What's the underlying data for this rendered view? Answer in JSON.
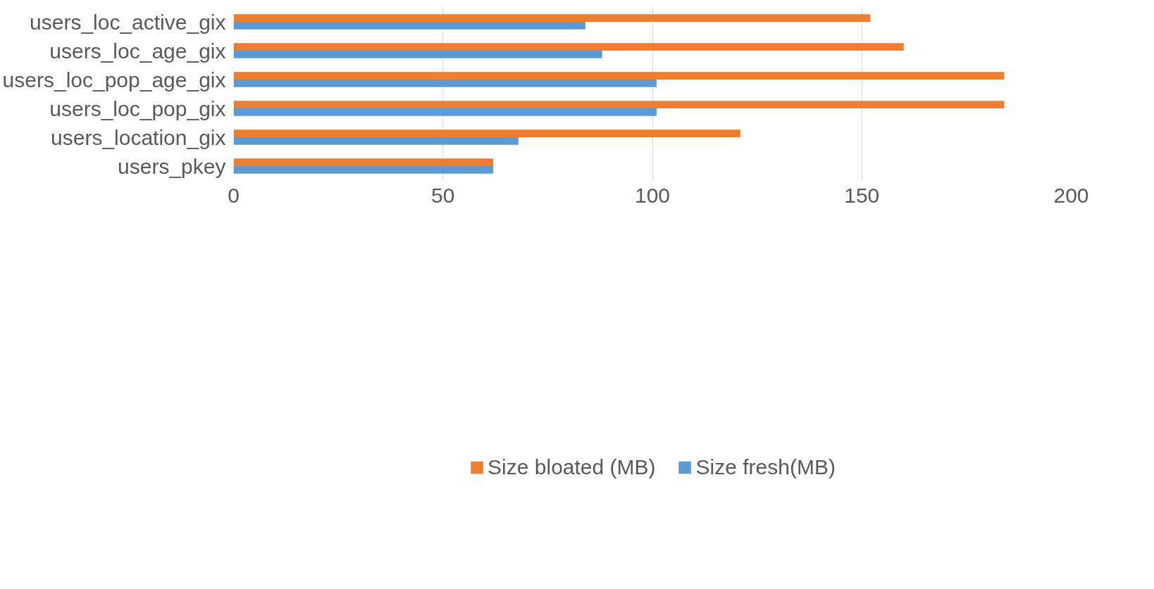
{
  "chart_data": {
    "type": "bar",
    "orientation": "horizontal",
    "categories": [
      "users_loc_active_gix",
      "users_loc_age_gix",
      "users_loc_pop_age_gix",
      "users_loc_pop_gix",
      "users_location_gix",
      "users_pkey"
    ],
    "series": [
      {
        "name": "Size bloated (MB)",
        "color": "#ed7d31",
        "values": [
          152,
          160,
          184,
          184,
          121,
          62
        ]
      },
      {
        "name": "Size fresh(MB)",
        "color": "#5b9bd5",
        "values": [
          84,
          88,
          101,
          101,
          68,
          62
        ]
      }
    ],
    "xlim": [
      0,
      200
    ],
    "xticks": [
      0,
      50,
      100,
      150,
      200
    ],
    "grid": "x",
    "legend": "bottom"
  }
}
